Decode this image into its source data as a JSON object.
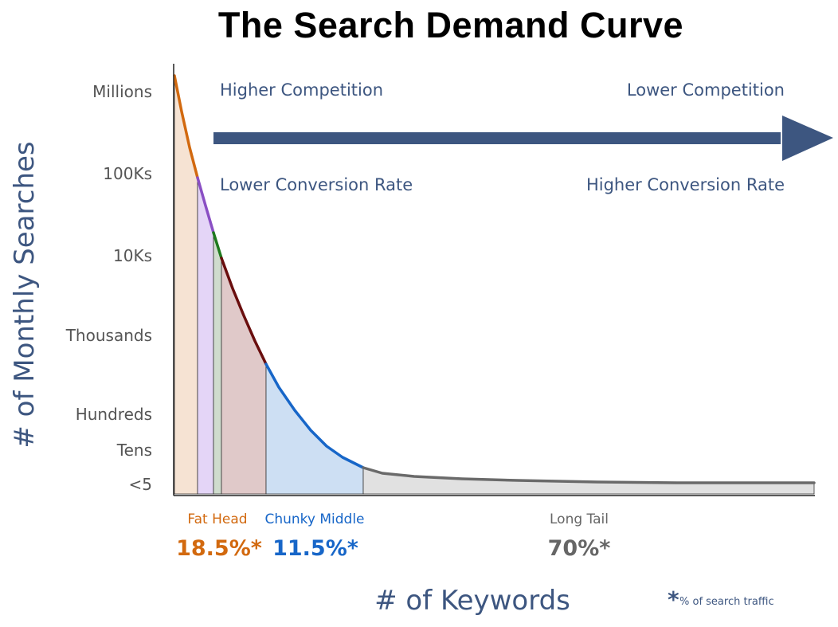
{
  "chart_data": {
    "type": "area",
    "title": "The Search Demand Curve",
    "ylabel": "# of Monthly Searches",
    "xlabel": "# of Keywords",
    "y_ticks": [
      "Millions",
      "100Ks",
      "10Ks",
      "Thousands",
      "Hundreds",
      "Tens",
      "<5"
    ],
    "annotations": {
      "top_left": "Higher Competition",
      "top_right": "Lower Competition",
      "bottom_left": "Lower Conversion Rate",
      "bottom_right": "Higher Conversion Rate"
    },
    "segments": [
      {
        "name": "Fat Head",
        "share": "18.5%*",
        "color": "#d2690f"
      },
      {
        "name": "Chunky Middle",
        "share": "11.5%*",
        "color": "#1766c8"
      },
      {
        "name": "Long Tail",
        "share": "70%*",
        "color": "#666666"
      }
    ],
    "footnote": {
      "marker": "*",
      "text": "% of search traffic"
    },
    "colors": {
      "fat_head_curve": "#d2690f",
      "fat_head_fill": "#f6e3d3",
      "purple_curve": "#8a4fc4",
      "purple_fill": "#e4d5f7",
      "green_curve": "#1e7a1e",
      "green_fill": "#cfdccd",
      "maroon_curve": "#6a0e0e",
      "maroon_fill": "#e0c9c9",
      "middle_curve": "#1766c8",
      "middle_fill": "#cddff3",
      "tail_curve": "#6a6a6a",
      "tail_fill": "#e1e1e1",
      "arrow": "#3d5680"
    }
  }
}
